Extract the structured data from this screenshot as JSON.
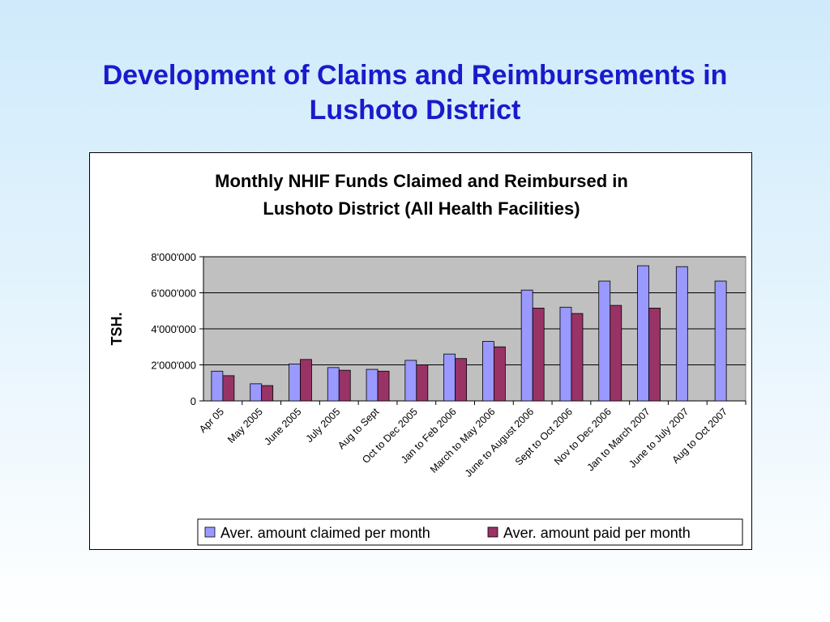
{
  "slide": {
    "title_line1": "Development of Claims and Reimbursements in",
    "title_line2": "Lushoto District"
  },
  "chart_data": {
    "type": "bar",
    "title": [
      "Monthly NHIF Funds Claimed and Reimbursed in",
      "Lushoto District (All Health Facilities)"
    ],
    "xlabel": "",
    "ylabel": "TSH.",
    "ylim": [
      0,
      8000000
    ],
    "yticks": [
      0,
      2000000,
      4000000,
      6000000,
      8000000
    ],
    "ytick_labels": [
      "0",
      "2'000'000",
      "4'000'000",
      "6'000'000",
      "8'000'000"
    ],
    "grid": true,
    "legend_position": "bottom",
    "categories": [
      "Apr 05",
      "May 2005",
      "June 2005",
      "July 2005",
      "Aug to Sept",
      "Oct to Dec 2005",
      "Jan to Feb 2006",
      "March to May 2006",
      "June to August 2006",
      "Sept to Oct 2006",
      "Nov to Dec 2006",
      "Jan to March 2007",
      "June to July 2007",
      "Aug to Oct 2007"
    ],
    "series": [
      {
        "name": "Aver. amount claimed per month",
        "color": "#9999ff",
        "values": [
          1650000,
          950000,
          2050000,
          1850000,
          1750000,
          2250000,
          2600000,
          3300000,
          6150000,
          5200000,
          6650000,
          7500000,
          7450000,
          6650000
        ]
      },
      {
        "name": "Aver. amount paid per month",
        "color": "#993366",
        "values": [
          1400000,
          850000,
          2300000,
          1700000,
          1650000,
          2000000,
          2350000,
          3000000,
          5150000,
          4850000,
          5300000,
          5150000,
          null,
          null
        ]
      }
    ],
    "plot_background": "#c0c0c0"
  }
}
